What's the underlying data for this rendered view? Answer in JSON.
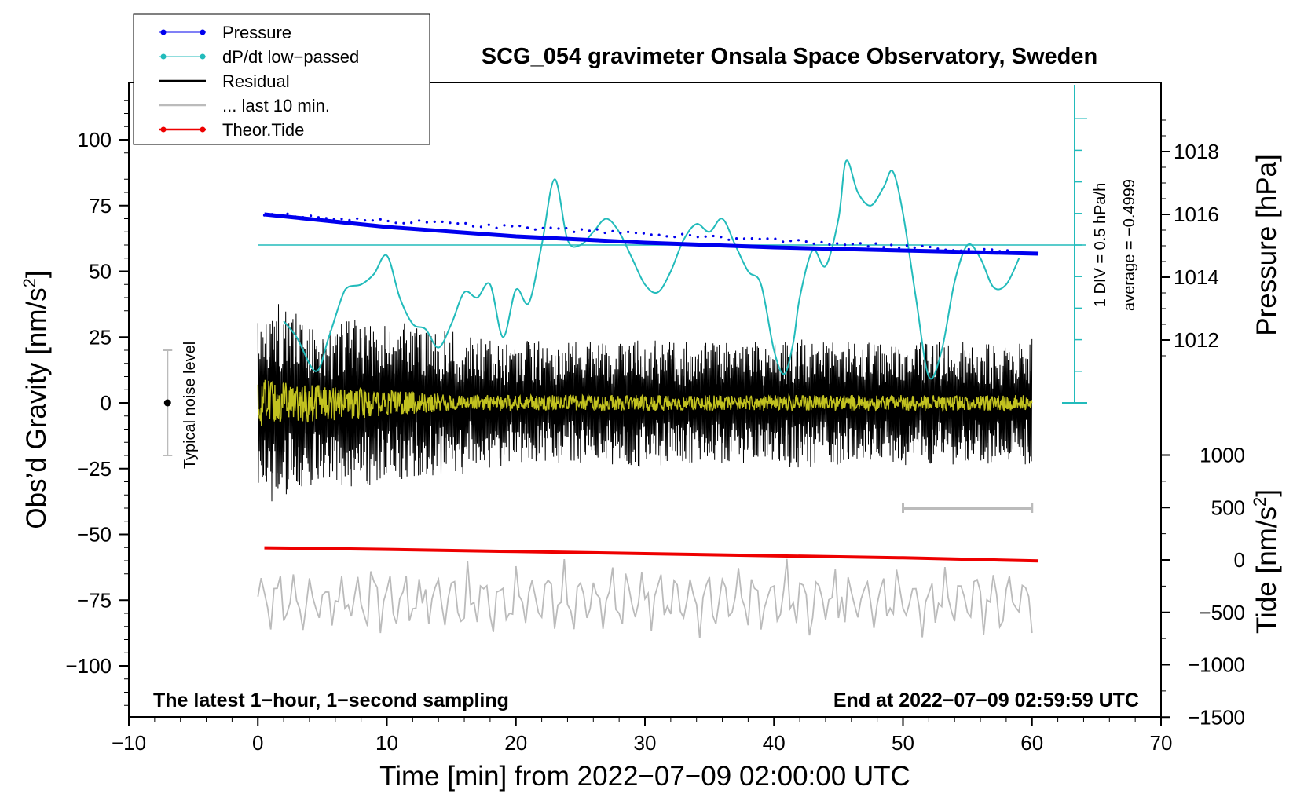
{
  "chart_data": {
    "type": "line",
    "title": "SCG_054 gravimeter Onsala Space Observatory, Sweden",
    "xlabel": "Time [min] from 2022−07−09 02:00:00 UTC",
    "ylabel_left_main": "Obs’d Gravity [nm/s",
    "ylabel_left_sup": "2",
    "ylabel_left_close": "]",
    "ylabel_right_top": "Pressure [hPa]",
    "ylabel_right_bottom_main": "Tide [nm/s",
    "ylabel_right_bottom_sup": "2",
    "ylabel_right_bottom_close": "]",
    "xlim": [
      -10,
      70
    ],
    "ylim": [
      -120,
      120
    ],
    "x_ticks": [
      -10,
      0,
      10,
      20,
      30,
      40,
      50,
      60,
      70
    ],
    "x_tick_labels": [
      "−10",
      "0",
      "10",
      "20",
      "30",
      "40",
      "50",
      "60",
      "70"
    ],
    "y_ticks": [
      -100,
      -75,
      -50,
      -25,
      0,
      25,
      50,
      75,
      100
    ],
    "y_tick_labels": [
      "−100",
      "−75",
      "−50",
      "−25",
      "0",
      "25",
      "50",
      "75",
      "100"
    ],
    "pressure_axis": {
      "ticks": [
        1012,
        1014,
        1016,
        1018
      ],
      "tick_labels": [
        "1012",
        "1014",
        "1016",
        "1018"
      ]
    },
    "tide_axis": {
      "ticks": [
        -1500,
        -1000,
        -500,
        0,
        500,
        1000
      ],
      "tick_labels": [
        "−1500",
        "−1000",
        "−500",
        "0",
        "500",
        "1000"
      ]
    },
    "legend": {
      "position": "top-left",
      "entries": [
        {
          "label": "Pressure",
          "color": "#0000ee",
          "marker": true
        },
        {
          "label": "dP/dt low−passed",
          "color": "#22bbbb",
          "marker": true
        },
        {
          "label": "Residual",
          "color": "#000000",
          "marker": false
        },
        {
          "label": "... last 10 min.",
          "color": "#bbbbbb",
          "marker": false
        },
        {
          "label": "Theor.Tide",
          "color": "#ee0000",
          "marker": true
        }
      ]
    },
    "annotations": {
      "bottom_left": "The latest 1−hour, 1−second sampling",
      "bottom_right": "End at 2022−07−09 02:59:59 UTC",
      "noise_level": "Typical noise level",
      "dpdt_scale": "1 DIV = 0.5 hPa/h",
      "dpdt_average": "average = −0.4999"
    },
    "series": [
      {
        "name": "Pressure",
        "color": "#0000ee",
        "unit": "hPa",
        "x": [
          0.5,
          10,
          20,
          30,
          40,
          50,
          60.5
        ],
        "values": [
          1016.0,
          1015.6,
          1015.3,
          1015.1,
          1014.95,
          1014.85,
          1014.75
        ]
      },
      {
        "name": "dP/dt low−passed",
        "color": "#22bbbb",
        "unit": "plot units",
        "x": [
          2,
          3,
          4.5,
          5.5,
          6.5,
          7,
          8,
          9,
          10,
          11,
          12,
          13,
          14,
          15,
          16,
          17,
          18,
          19,
          20,
          21,
          22,
          23,
          24,
          25,
          26,
          27,
          28,
          29,
          30,
          31,
          32,
          33,
          34,
          35,
          36,
          37,
          38,
          39,
          40,
          40.8,
          41.5,
          42,
          43,
          44,
          45,
          45.6,
          46.5,
          47.5,
          48.5,
          49.2,
          50,
          51,
          52,
          53,
          54,
          55,
          56,
          57,
          58,
          59
        ],
        "values": [
          31,
          25,
          12,
          25,
          40,
          44,
          45,
          49,
          56,
          40,
          30,
          28,
          21,
          30,
          42,
          40,
          45,
          25,
          43,
          38,
          60,
          85,
          62,
          60,
          65,
          70,
          65,
          55,
          45,
          42,
          50,
          62,
          68,
          65,
          70,
          60,
          50,
          45,
          20,
          11,
          23,
          40,
          58,
          52,
          70,
          92,
          80,
          75,
          82,
          88,
          72,
          40,
          10,
          20,
          46,
          60,
          55,
          44,
          45,
          55
        ]
      },
      {
        "name": "Residual",
        "color": "#000000",
        "unit": "nm/s2",
        "x": [
          0,
          60
        ],
        "values": [
          0,
          0
        ],
        "peak_to_peak": [
          [
            0,
            5,
            80
          ],
          [
            15,
            20,
            60
          ],
          [
            20,
            40,
            40
          ],
          [
            40,
            60,
            40
          ]
        ]
      },
      {
        "name": "... last 10 min.",
        "color": "#bbbbbb",
        "unit": "nm/s2 (offset)",
        "x": [
          0,
          60
        ],
        "values": [
          -75,
          -75
        ]
      },
      {
        "name": "Theor.Tide",
        "color": "#ee0000",
        "unit": "nm/s2",
        "x": [
          0.5,
          10,
          20,
          30,
          40,
          50,
          60.5
        ],
        "values": [
          115,
          100,
          80,
          60,
          40,
          20,
          -10
        ]
      }
    ],
    "scale_bar_10min": {
      "x": [
        50,
        60
      ],
      "y": -40
    },
    "noise_bar": {
      "x": -7,
      "y": [
        -20,
        20
      ]
    }
  }
}
